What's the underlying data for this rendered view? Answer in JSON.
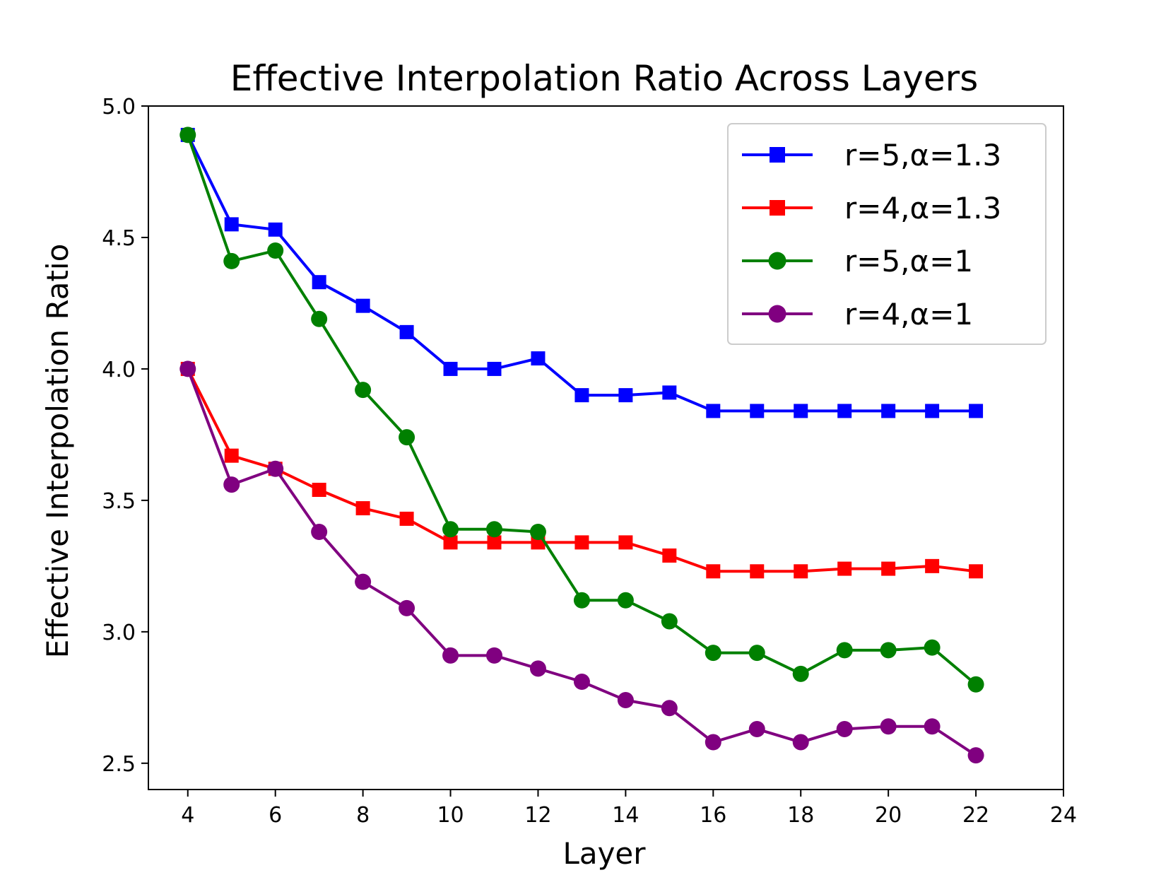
{
  "chart_data": {
    "type": "line",
    "title": "Effective Interpolation Ratio Across Layers",
    "xlabel": "Layer",
    "ylabel": "Effective Interpolation Ratio",
    "xlim": [
      3.1,
      24
    ],
    "ylim": [
      2.4,
      5.0
    ],
    "xticks": [
      4,
      6,
      8,
      10,
      12,
      14,
      16,
      18,
      20,
      22,
      24
    ],
    "yticks": [
      2.5,
      3.0,
      3.5,
      4.0,
      4.5,
      5.0
    ],
    "xtick_labels": [
      "4",
      "6",
      "8",
      "10",
      "12",
      "14",
      "16",
      "18",
      "20",
      "22",
      "24"
    ],
    "ytick_labels": [
      "2.5",
      "3.0",
      "3.5",
      "4.0",
      "4.5",
      "5.0"
    ],
    "grid": false,
    "legend_position": "top-right",
    "x": [
      4,
      5,
      6,
      7,
      8,
      9,
      10,
      11,
      12,
      13,
      14,
      15,
      16,
      17,
      18,
      19,
      20,
      21,
      22
    ],
    "series": [
      {
        "name": "r=5,α=1.3",
        "color": "#0000ff",
        "marker": "square",
        "values": [
          4.89,
          4.55,
          4.53,
          4.33,
          4.24,
          4.14,
          4.0,
          4.0,
          4.04,
          3.9,
          3.9,
          3.91,
          3.84,
          3.84,
          3.84,
          3.84,
          3.84,
          3.84,
          3.84
        ]
      },
      {
        "name": "r=4,α=1.3",
        "color": "#ff0000",
        "marker": "square",
        "values": [
          4.0,
          3.67,
          3.62,
          3.54,
          3.47,
          3.43,
          3.34,
          3.34,
          3.34,
          3.34,
          3.34,
          3.29,
          3.23,
          3.23,
          3.23,
          3.24,
          3.24,
          3.25,
          3.23
        ]
      },
      {
        "name": "r=5,α=1",
        "color": "#008000",
        "marker": "circle",
        "values": [
          4.89,
          4.41,
          4.45,
          4.19,
          3.92,
          3.74,
          3.39,
          3.39,
          3.38,
          3.12,
          3.12,
          3.04,
          2.92,
          2.92,
          2.84,
          2.93,
          2.93,
          2.94,
          2.8
        ]
      },
      {
        "name": "r=4,α=1",
        "color": "#800080",
        "marker": "circle",
        "values": [
          4.0,
          3.56,
          3.62,
          3.38,
          3.19,
          3.09,
          2.91,
          2.91,
          2.86,
          2.81,
          2.74,
          2.71,
          2.58,
          2.63,
          2.58,
          2.63,
          2.64,
          2.64,
          2.53
        ]
      }
    ]
  }
}
